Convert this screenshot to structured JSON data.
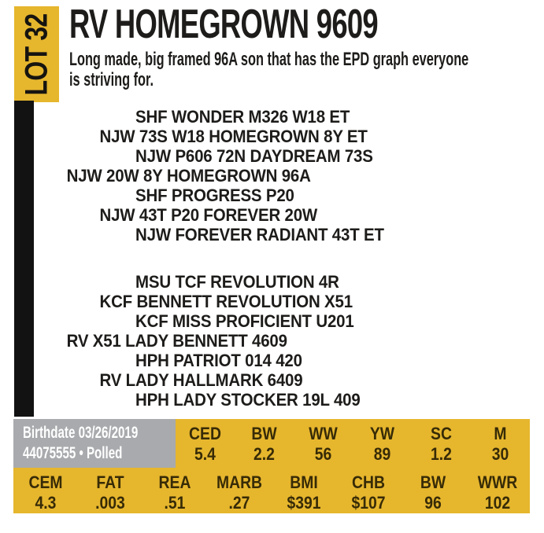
{
  "lot": {
    "label": "LOT 32"
  },
  "header": {
    "title": "RV HOMEGROWN 9609",
    "description_line1": "Long made, big framed 96A son that has the EPD graph everyone",
    "description_line2": "is striving for."
  },
  "pedigree": {
    "sire_block": [
      "SHF WONDER M326 W18 ET",
      "NJW 73S W18 HOMEGROWN 8Y ET",
      "NJW P606 72N DAYDREAM 73S",
      "NJW 20W 8Y HOMEGROWN 96A",
      "SHF PROGRESS P20",
      "NJW 43T P20 FOREVER 20W",
      "NJW FOREVER RADIANT 43T ET"
    ],
    "dam_block": [
      "MSU TCF REVOLUTION 4R",
      "KCF BENNETT REVOLUTION X51",
      "KCF MISS PROFICIENT U201",
      "RV X51 LADY BENNETT 4609",
      "HPH PATRIOT 014 420",
      "RV LADY HALLMARK 6409",
      "HPH LADY STOCKER 19L 409"
    ]
  },
  "info": {
    "birthdate": "Birthdate 03/26/2019",
    "registration": "44075555 • Polled"
  },
  "epd": {
    "row1": [
      {
        "label": "CED",
        "value": "5.4"
      },
      {
        "label": "BW",
        "value": "2.2"
      },
      {
        "label": "WW",
        "value": "56"
      },
      {
        "label": "YW",
        "value": "89"
      },
      {
        "label": "SC",
        "value": "1.2"
      },
      {
        "label": "M",
        "value": "30"
      }
    ],
    "row2": [
      {
        "label": "CEM",
        "value": "4.3"
      },
      {
        "label": "FAT",
        "value": ".003"
      },
      {
        "label": "REA",
        "value": ".51"
      },
      {
        "label": "MARB",
        "value": ".27"
      },
      {
        "label": "BMI",
        "value": "$391"
      },
      {
        "label": "CHB",
        "value": "$107"
      },
      {
        "label": "BW",
        "value": "96"
      },
      {
        "label": "WWR",
        "value": "102"
      }
    ]
  },
  "colors": {
    "yellow": "#E6B62D",
    "gray": "#A8AAAD",
    "bar_black": "#121212",
    "text_dark": "#1D1C1A",
    "epd_text": "#372B07"
  }
}
